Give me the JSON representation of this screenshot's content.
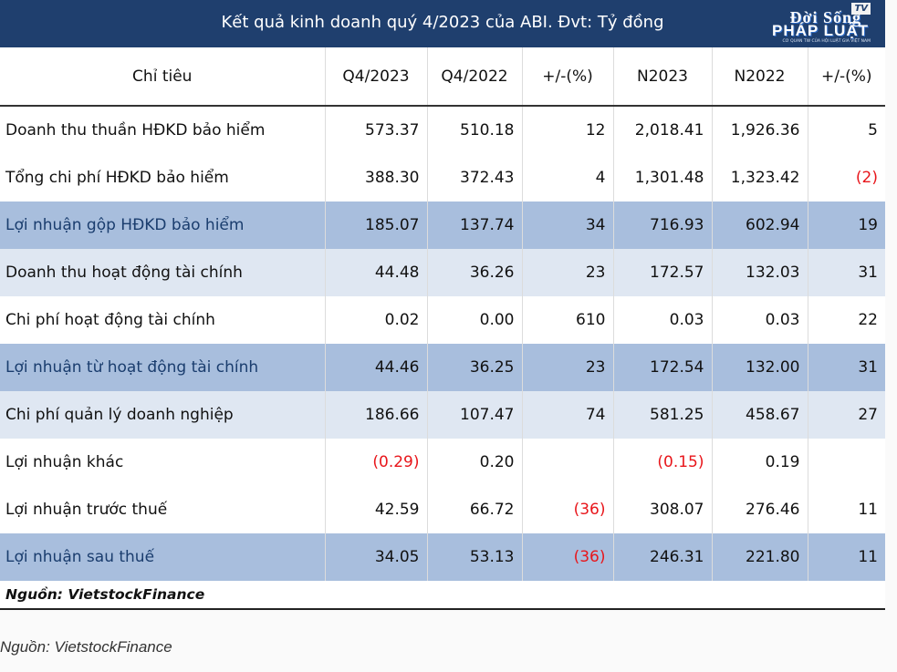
{
  "header": {
    "title": "Kết quả kinh doanh quý 4/2023 của ABI. Đvt: Tỷ đồng",
    "logo_line1": "Đời Sống",
    "logo_line2": "PHÁP LUẬT",
    "logo_badge": "TV",
    "logo_tagline": "CƠ QUAN TW CỦA HỘI LUẬT GIA VIỆT NAM"
  },
  "table": {
    "columns": [
      "Chỉ tiêu",
      "Q4/2023",
      "Q4/2022",
      "+/-(%)",
      "N2023",
      "N2022",
      "+/-(%)"
    ],
    "rows": [
      {
        "label": "Doanh thu thuần HĐKD bảo hiểm",
        "style": "white",
        "cells": [
          {
            "v": "573.37"
          },
          {
            "v": "510.18"
          },
          {
            "v": "12"
          },
          {
            "v": "2,018.41"
          },
          {
            "v": "1,926.36"
          },
          {
            "v": "5"
          }
        ]
      },
      {
        "label": "Tổng chi phí HĐKD bảo hiểm",
        "style": "white",
        "cells": [
          {
            "v": "388.30"
          },
          {
            "v": "372.43"
          },
          {
            "v": "4"
          },
          {
            "v": "1,301.48"
          },
          {
            "v": "1,323.42"
          },
          {
            "v": "(2)",
            "neg": true
          }
        ]
      },
      {
        "label": "Lợi nhuận gộp HĐKD bảo hiểm",
        "style": "dark",
        "cells": [
          {
            "v": "185.07"
          },
          {
            "v": "137.74"
          },
          {
            "v": "34"
          },
          {
            "v": "716.93"
          },
          {
            "v": "602.94"
          },
          {
            "v": "19"
          }
        ]
      },
      {
        "label": "Doanh thu hoạt động tài chính",
        "style": "light",
        "cells": [
          {
            "v": "44.48"
          },
          {
            "v": "36.26"
          },
          {
            "v": "23"
          },
          {
            "v": "172.57"
          },
          {
            "v": "132.03"
          },
          {
            "v": "31"
          }
        ]
      },
      {
        "label": "Chi phí hoạt động tài chính",
        "style": "white",
        "cells": [
          {
            "v": "0.02"
          },
          {
            "v": "0.00"
          },
          {
            "v": "610"
          },
          {
            "v": "0.03"
          },
          {
            "v": "0.03"
          },
          {
            "v": "22"
          }
        ]
      },
      {
        "label": "Lợi nhuận từ hoạt động tài chính",
        "style": "dark",
        "cells": [
          {
            "v": "44.46"
          },
          {
            "v": "36.25"
          },
          {
            "v": "23"
          },
          {
            "v": "172.54"
          },
          {
            "v": "132.00"
          },
          {
            "v": "31"
          }
        ]
      },
      {
        "label": "Chi phí quản lý doanh nghiệp",
        "style": "light",
        "cells": [
          {
            "v": "186.66"
          },
          {
            "v": "107.47"
          },
          {
            "v": "74"
          },
          {
            "v": "581.25"
          },
          {
            "v": "458.67"
          },
          {
            "v": "27"
          }
        ]
      },
      {
        "label": "Lợi nhuận khác",
        "style": "white",
        "cells": [
          {
            "v": "(0.29)",
            "neg": true
          },
          {
            "v": "0.20"
          },
          {
            "v": ""
          },
          {
            "v": "(0.15)",
            "neg": true
          },
          {
            "v": "0.19"
          },
          {
            "v": ""
          }
        ]
      },
      {
        "label": "Lợi nhuận trước thuế",
        "style": "white",
        "cells": [
          {
            "v": "42.59"
          },
          {
            "v": "66.72"
          },
          {
            "v": "(36)",
            "neg": true
          },
          {
            "v": "308.07"
          },
          {
            "v": "276.46"
          },
          {
            "v": "11"
          }
        ]
      },
      {
        "label": "Lợi nhuận sau thuế",
        "style": "dark",
        "cells": [
          {
            "v": "34.05"
          },
          {
            "v": "53.13"
          },
          {
            "v": "(36)",
            "neg": true
          },
          {
            "v": "246.31"
          },
          {
            "v": "221.80"
          },
          {
            "v": "11"
          }
        ]
      }
    ],
    "source": "Nguồn: VietstockFinance"
  },
  "caption": "Nguồn: VietstockFinance",
  "colors": {
    "header_bg": "#1f3f6e",
    "dark_row": "#a8bedd",
    "light_row": "#dfe7f2",
    "negative": "#e8161b"
  }
}
